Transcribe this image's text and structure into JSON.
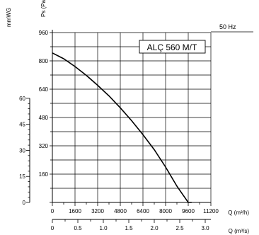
{
  "chart_data": {
    "type": "line",
    "title": "ALÇ 560 M/T",
    "note": "50 Hz",
    "x_primary": {
      "label": "Q (m³/h)",
      "ticks": [
        0,
        1600,
        3200,
        4800,
        6400,
        8000,
        9600,
        11200
      ],
      "range": [
        0,
        11200
      ]
    },
    "x_secondary": {
      "label": "Q (m³/s)",
      "ticks": [
        "0",
        "0.5",
        "1.0",
        "1.5",
        "2.0",
        "2.5",
        "3.0"
      ],
      "tick_values": [
        0,
        0.5,
        1.0,
        1.5,
        2.0,
        2.5,
        3.0
      ],
      "range": [
        0,
        3.111
      ]
    },
    "y_primary": {
      "label": "Ps (Pa)",
      "ticks": [
        0,
        160,
        320,
        480,
        640,
        800,
        960
      ],
      "range": [
        0,
        960
      ]
    },
    "y_secondary": {
      "label": "mmWG",
      "ticks": [
        0,
        15,
        30,
        45,
        60
      ],
      "range": [
        0,
        97.9
      ]
    },
    "grid": true,
    "series": [
      {
        "x": [
          0,
          800,
          1600,
          2400,
          3200,
          4000,
          4800,
          5600,
          6400,
          7200,
          8000,
          8800,
          9600,
          9840
        ],
        "y": [
          845,
          812,
          768,
          718,
          662,
          602,
          535,
          462,
          383,
          298,
          200,
          92,
          0,
          0
        ]
      }
    ]
  }
}
